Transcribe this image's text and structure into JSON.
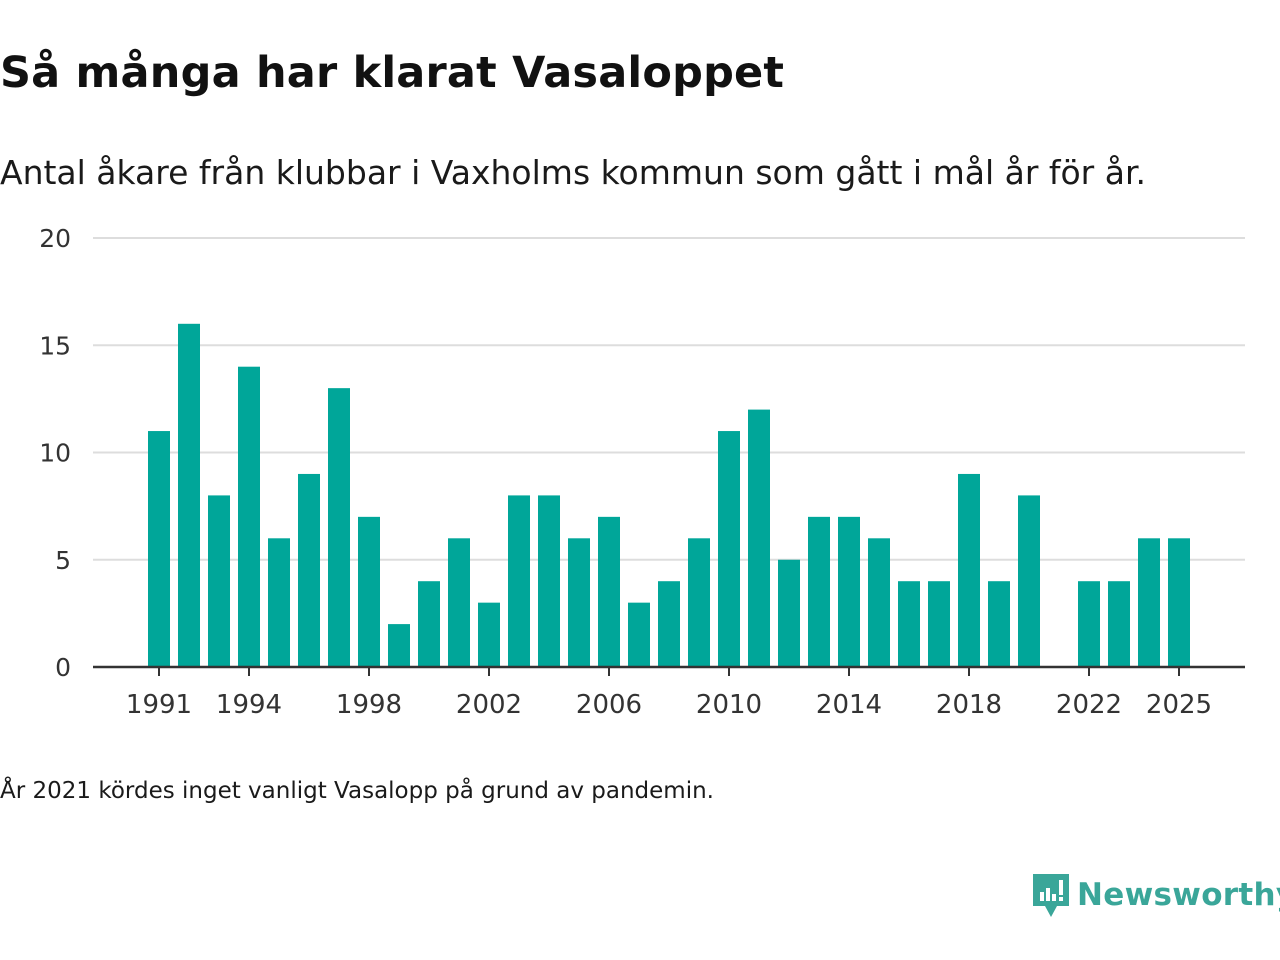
{
  "header": {
    "title": "Så många har klarat Vasaloppet",
    "subtitle": "Antal åkare från klubbar i Vaxholms kommun som gått i mål år för år."
  },
  "footnote": "År 2021 kördes inget vanligt Vasalopp på grund av pandemin.",
  "brand": {
    "name": "Newsworthy",
    "color": "#3aa699"
  },
  "colors": {
    "bar": "#00a699",
    "grid": "#dddddd",
    "axis": "#333333"
  },
  "chart_data": {
    "type": "bar",
    "title": "Så många har klarat Vasaloppet",
    "xlabel": "",
    "ylabel": "",
    "categories": [
      1991,
      1992,
      1993,
      1994,
      1995,
      1996,
      1997,
      1998,
      1999,
      2000,
      2001,
      2002,
      2003,
      2004,
      2005,
      2006,
      2007,
      2008,
      2009,
      2010,
      2011,
      2012,
      2013,
      2014,
      2015,
      2016,
      2017,
      2018,
      2019,
      2020,
      2021,
      2022,
      2023,
      2024,
      2025
    ],
    "values": [
      11,
      16,
      8,
      14,
      6,
      9,
      13,
      7,
      2,
      4,
      6,
      3,
      8,
      8,
      6,
      7,
      3,
      4,
      6,
      11,
      12,
      5,
      7,
      7,
      6,
      4,
      4,
      9,
      4,
      8,
      null,
      4,
      4,
      6,
      6
    ],
    "ylim": [
      0,
      20
    ],
    "yticks": [
      0,
      5,
      10,
      15,
      20
    ],
    "xtick_labels": [
      "1991",
      "1994",
      "1998",
      "2002",
      "2006",
      "2010",
      "2014",
      "2018",
      "2022",
      "2025"
    ],
    "grid": true
  }
}
